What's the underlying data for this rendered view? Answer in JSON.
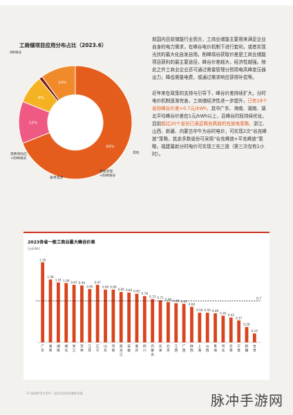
{
  "pie": {
    "title": "工商储项目应用分布占比（2023.6）",
    "segments": [
      {
        "label": "削峰填谷",
        "value": 69,
        "pct_text": "69%",
        "color": "#e45d1c"
      },
      {
        "label": "其他",
        "value": 12,
        "pct_text": "12%",
        "color": "#ef5a85"
      },
      {
        "label": "需量管理+削峰填谷",
        "value": 8,
        "pct_text": "8%",
        "color": "#f5b324"
      },
      {
        "label": "备用电源",
        "value": 1,
        "pct_text": "1%",
        "color": "#7a1d12"
      },
      {
        "label": "需要侧响应+削峰填谷",
        "value": 10,
        "pct_text": "10%",
        "color": "#f08a2a"
      }
    ],
    "colors": {
      "center": "#ffffff"
    }
  },
  "text": {
    "p1": "就国内目前储能行业而言，工商业储能主要用来满足企业自身的电力需求，在峰谷电价机制下进行套利，或者实现光伏的最大化自发自用。削峰填谷获取价差是工商业储能项目获利的最主要途径，峰谷价差越大，经济性越强。除此之外工商业企业还可通过需量管理分担用电高峰变压器出力，降低需量电费，或通过需求响应获得补偿等。",
    "p2a": "近年来在政策的支持与引导下，峰谷价差持续扩大，分时电价机制逐渐完善，工商储经济性进一步提升，",
    "p2b": "已有18个省份峰谷价差>0.7元/kWh，",
    "p2c": "其中广东、海南、湖南、湖北平均峰谷价差在1元/kWh以上，且峰谷时段持续优化，目前",
    "p2d": "超过20个省份已满足两充两放的充放电策略，",
    "p2e": "浙江、山西、新疆、内蒙古中午为谷时电价，可实现2次“谷充峰放”策略，其余多数省份可采用“谷充峰放+平充峰放”策略，福建最新分时电价可实现三充三放（第三次仅有1小时）。"
  },
  "chart_data": {
    "type": "bar",
    "title": "2023各省一般工商业最大峰谷价差",
    "ylabel": "[元/kWh]",
    "categories": [
      "广东",
      "海南",
      "湖南",
      "湖北",
      "浙江",
      "吉林",
      "江苏",
      "辽宁",
      "山东",
      "河南",
      "黑龙江",
      "安徽",
      "重庆",
      "四川",
      "内蒙古",
      "天津",
      "北京",
      "江西",
      "广西",
      "陕西",
      "上海",
      "山西",
      "青海",
      "河北",
      "云南",
      "宁夏",
      "新疆",
      "甘肃"
    ],
    "values": [
      1.35,
      1.06,
      1.01,
      1.0,
      0.97,
      0.96,
      0.9,
      0.97,
      0.89,
      0.89,
      0.85,
      0.84,
      0.82,
      0.78,
      0.73,
      0.71,
      0.68,
      0.66,
      0.65,
      0.6,
      0.5,
      0.5,
      0.49,
      0.45,
      0.42,
      0.37,
      0.26,
      0.15
    ],
    "value_labels": [
      "1.35",
      "1.06",
      "1.01",
      "1.00",
      "0.97",
      "0.96",
      "0.90",
      "0.97",
      "0.89",
      "0.89",
      "0.85",
      "0.84",
      "0.82",
      "0.78",
      "0.73",
      "0.71",
      "0.68",
      "0.66",
      "0.65",
      "0.60",
      "0.50",
      "0.50",
      "0.49",
      "0.45",
      "0.42",
      "0.37",
      "0.26",
      "0.15"
    ],
    "ylim": [
      0,
      1.4
    ],
    "reference_line": {
      "value": 0.7,
      "label": "0.7"
    },
    "bar_color": "#d9431d",
    "grid": false
  },
  "footer": "15  能源转型大系列 · 出台后信息的最新发展",
  "watermark": "脉冲手游网"
}
